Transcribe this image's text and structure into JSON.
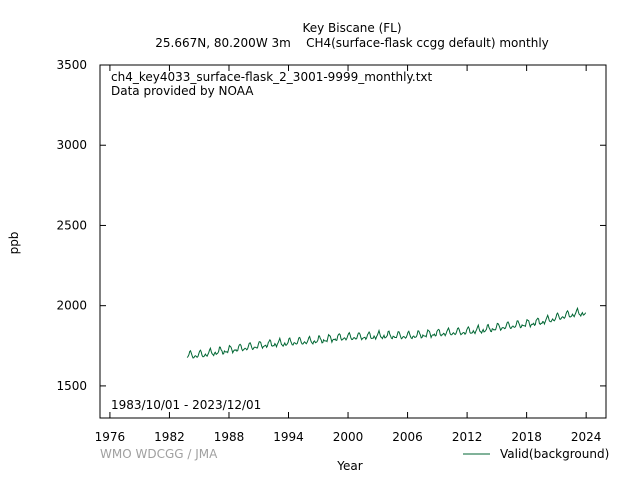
{
  "header": {
    "title": "Key Biscane (FL)",
    "subtitle": "25.667N, 80.200W 3m    CH4(surface-flask ccgg default) monthly"
  },
  "annotations": {
    "filename": "ch4_key4033_surface-flask_2_3001-9999_monthly.txt",
    "provider": "Data provided by NOAA",
    "period": "1983/10/01 - 2023/12/01",
    "credit": "WMO WDCGG / JMA"
  },
  "colors": {
    "series": "#006633",
    "credit": "#a0a0a0",
    "axis": "#000000"
  },
  "chart_data": {
    "type": "line",
    "xlabel": "Year",
    "ylabel": "ppb",
    "xlim": [
      1975,
      2026
    ],
    "ylim": [
      1300,
      3500
    ],
    "xticks": [
      1976,
      1982,
      1988,
      1994,
      2000,
      2006,
      2012,
      2018,
      2024
    ],
    "yticks": [
      1500,
      2000,
      2500,
      3000,
      3500
    ],
    "grid": false,
    "legend_position": "bottom-right",
    "series": [
      {
        "name": "Valid(background)",
        "start": "1983-10",
        "end": "2023-12",
        "annual_means": {
          "1984": 1690,
          "1985": 1697,
          "1986": 1708,
          "1987": 1718,
          "1988": 1728,
          "1989": 1737,
          "1990": 1745,
          "1991": 1755,
          "1992": 1762,
          "1993": 1765,
          "1994": 1772,
          "1995": 1776,
          "1996": 1780,
          "1997": 1787,
          "1998": 1795,
          "1999": 1802,
          "2000": 1804,
          "2001": 1806,
          "2002": 1809,
          "2003": 1813,
          "2004": 1812,
          "2005": 1811,
          "2006": 1812,
          "2007": 1818,
          "2008": 1824,
          "2009": 1829,
          "2010": 1833,
          "2011": 1836,
          "2012": 1842,
          "2013": 1848,
          "2014": 1857,
          "2015": 1867,
          "2016": 1875,
          "2017": 1882,
          "2018": 1890,
          "2019": 1900,
          "2020": 1915,
          "2021": 1932,
          "2022": 1945,
          "2023": 1955
        },
        "seasonal_amplitude": 28
      }
    ]
  }
}
